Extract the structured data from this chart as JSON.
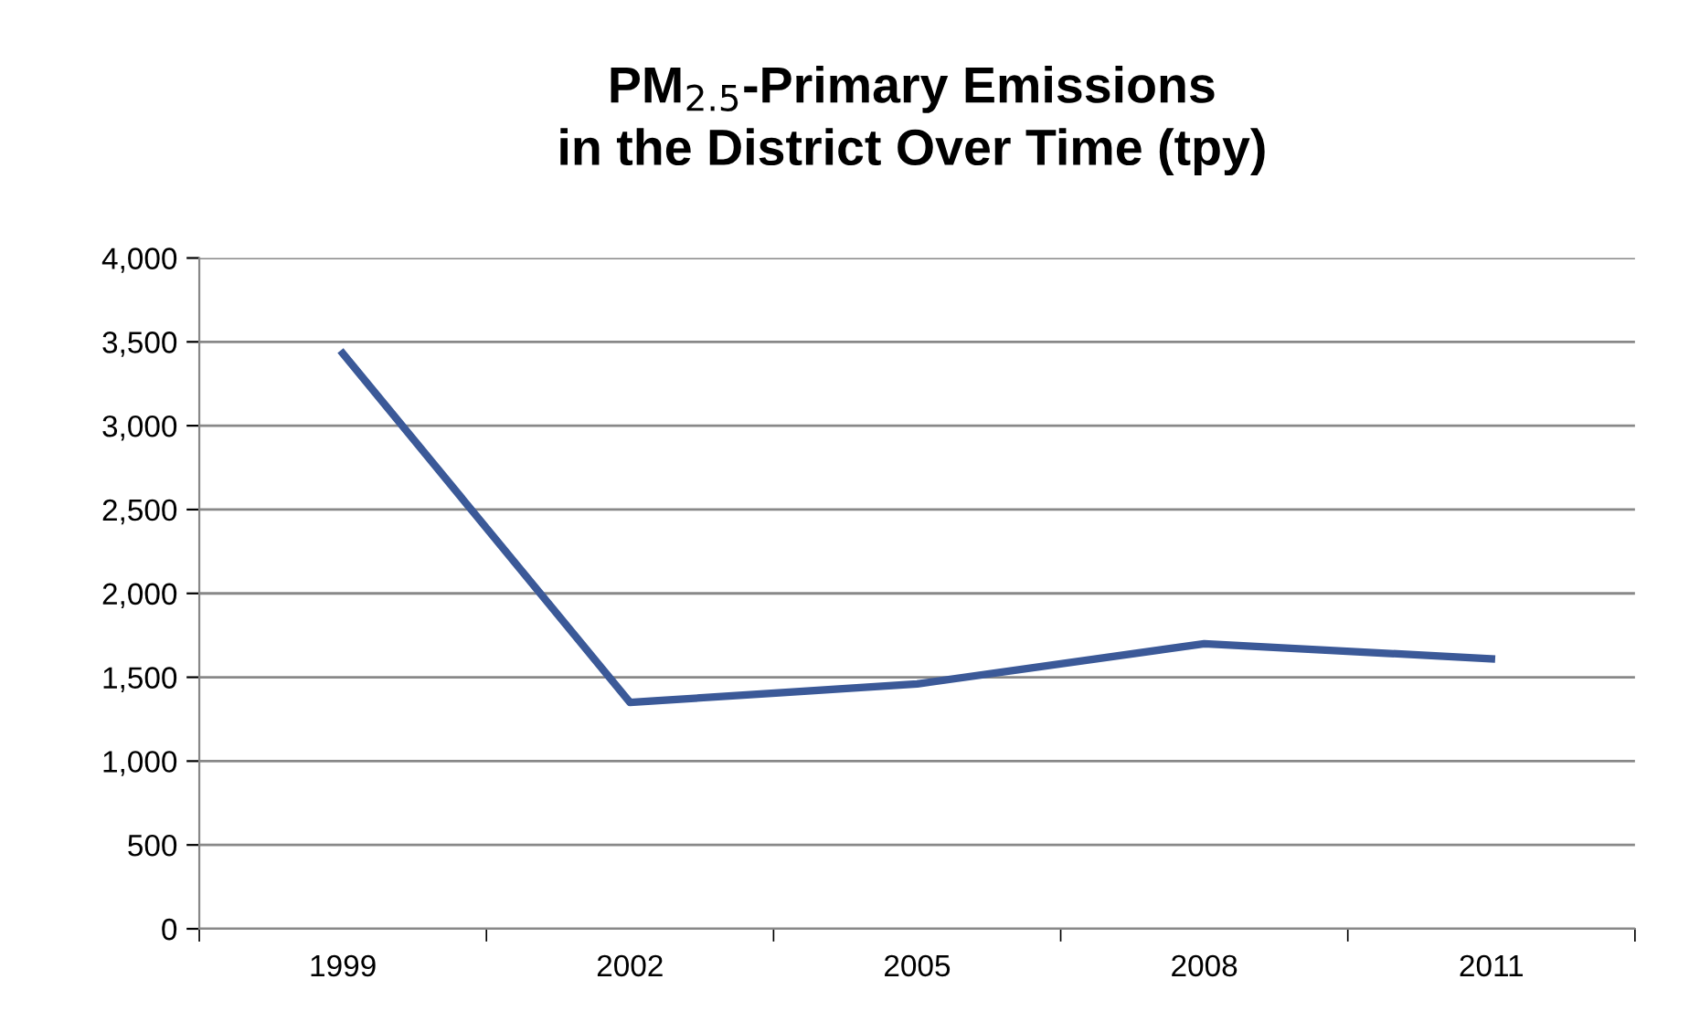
{
  "chart_data": {
    "type": "line",
    "title": "PM$_{2.5}$-Primary Emissions\nin the District Over Time (tpy)",
    "categories": [
      "1999",
      "2002",
      "2005",
      "2008",
      "2011"
    ],
    "series": [
      {
        "color": "#3b5998",
        "values": [
          3430,
          1350,
          1460,
          1700,
          1610
        ]
      }
    ],
    "ylim": [
      0,
      4000
    ],
    "yticks": [
      {
        "value": 0,
        "label": "0"
      },
      {
        "value": 500,
        "label": "500"
      },
      {
        "value": 1000,
        "label": "1,000"
      },
      {
        "value": 1500,
        "label": "1,500"
      },
      {
        "value": 2000,
        "label": "2,000"
      },
      {
        "value": 2500,
        "label": "2,500"
      },
      {
        "value": 3000,
        "label": "3,000"
      },
      {
        "value": 3500,
        "label": "3,500"
      },
      {
        "value": 4000,
        "label": "4,000"
      }
    ],
    "grid": "y",
    "marker": "none",
    "line_style": "solid"
  }
}
